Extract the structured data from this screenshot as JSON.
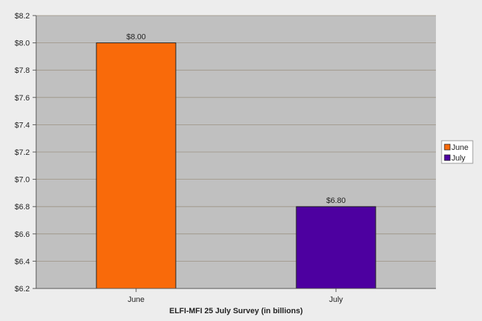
{
  "chart_data": {
    "type": "bar",
    "title": "",
    "xlabel": "ELFI-MFI 25 July Survey (in billions)",
    "ylabel": "",
    "categories": [
      "June",
      "July"
    ],
    "values": [
      8.0,
      6.8
    ],
    "value_labels": [
      "$8.00",
      "$6.80"
    ],
    "colors": [
      "#f96a0a",
      "#4d00a0"
    ],
    "ylim": [
      6.2,
      8.2
    ],
    "yticks": [
      6.2,
      6.4,
      6.6,
      6.8,
      7.0,
      7.2,
      7.4,
      7.6,
      7.8,
      8.0,
      8.2
    ],
    "ytick_labels": [
      "$6.2",
      "$6.4",
      "$6.6",
      "$6.8",
      "$7.0",
      "$7.2",
      "$7.4",
      "$7.6",
      "$7.8",
      "$8.0",
      "$8.2"
    ],
    "grid": true,
    "legend": {
      "placement": "right",
      "entries": [
        {
          "label": "June",
          "color": "#f96a0a"
        },
        {
          "label": "July",
          "color": "#4d00a0"
        }
      ]
    },
    "plot_background": "#c0c0c0",
    "grid_color": "#9a8f80"
  }
}
